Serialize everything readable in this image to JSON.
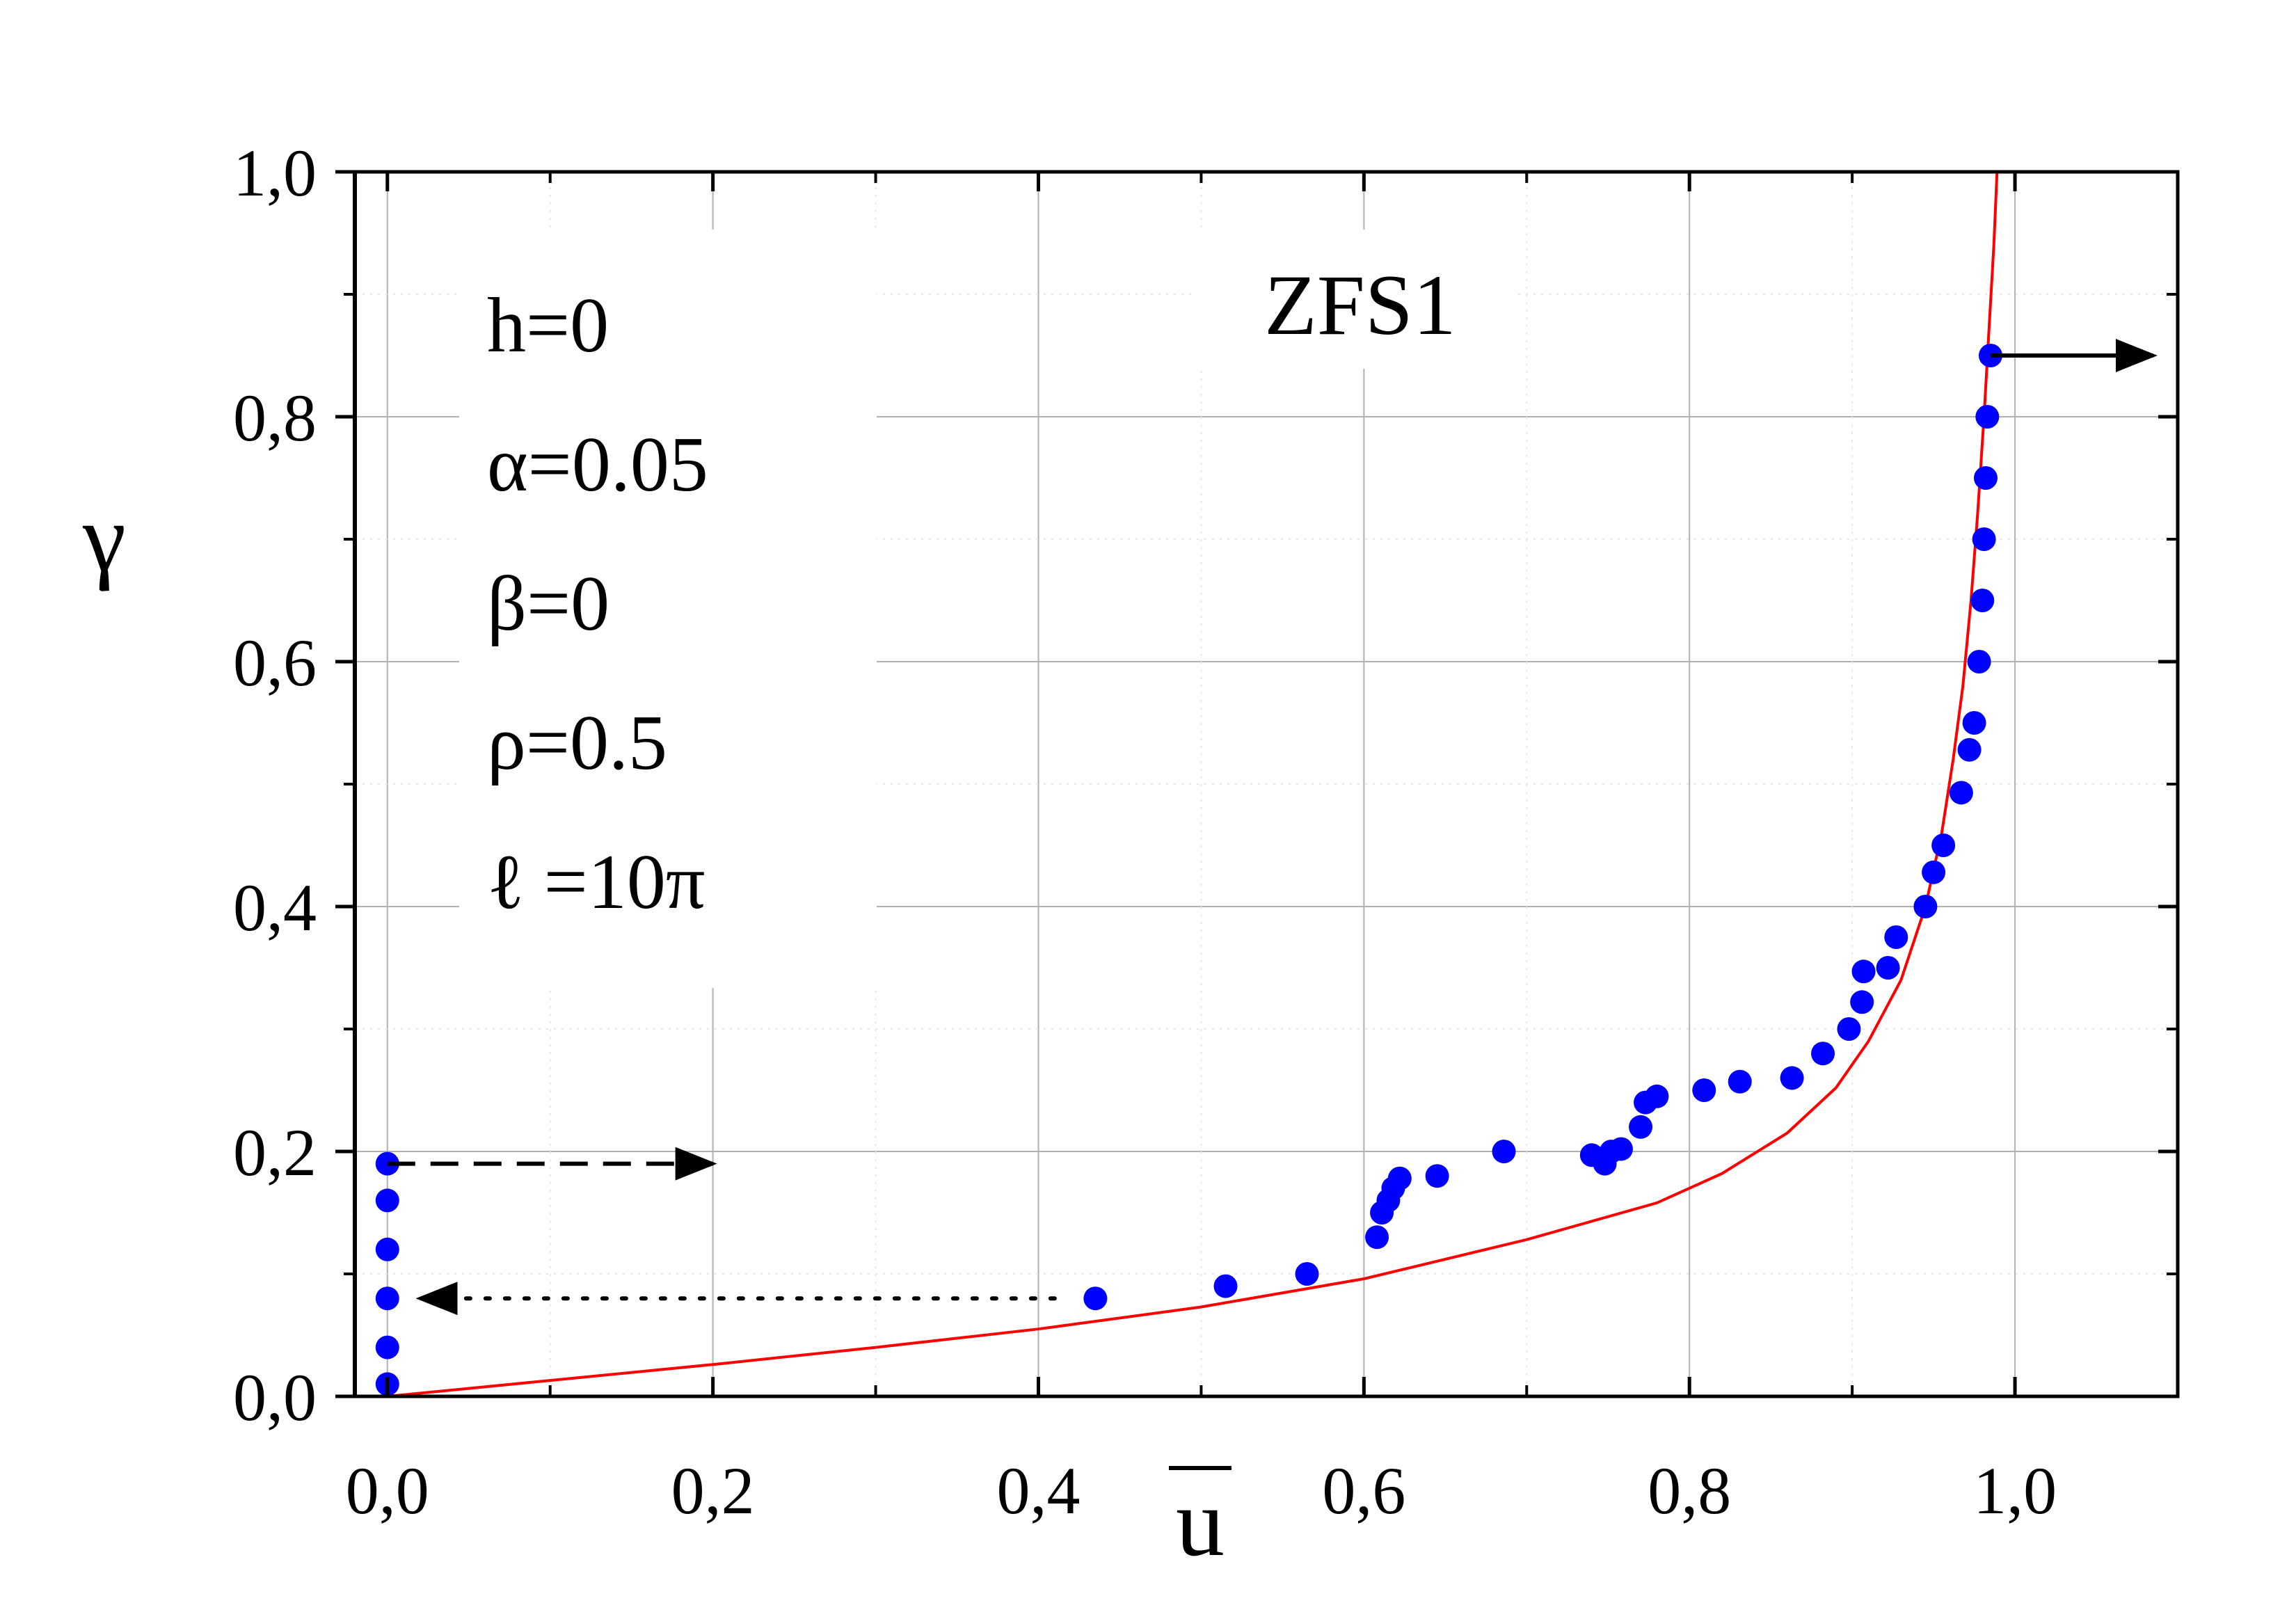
{
  "chart_data": {
    "type": "scatter",
    "title": "ZFS1",
    "xlabel": "u",
    "ylabel": "γ",
    "xlim": [
      -0.02,
      1.1
    ],
    "ylim": [
      0.0,
      1.0
    ],
    "grid": true,
    "x_ticks": [
      "0,0",
      "0,2",
      "0,4",
      "0,6",
      "0,8",
      "1,0"
    ],
    "y_ticks": [
      "0,0",
      "0,2",
      "0,4",
      "0,6",
      "0,8",
      "1,0"
    ],
    "parameters": [
      "h=0",
      "α=0.05",
      "β=0",
      "ρ=0.5",
      "ℓ =10π"
    ],
    "points": [
      {
        "x": 0.0,
        "y": 0.01
      },
      {
        "x": 0.0,
        "y": 0.04
      },
      {
        "x": 0.0,
        "y": 0.08
      },
      {
        "x": 0.0,
        "y": 0.12
      },
      {
        "x": 0.0,
        "y": 0.16
      },
      {
        "x": 0.0,
        "y": 0.19
      },
      {
        "x": 0.435,
        "y": 0.08
      },
      {
        "x": 0.515,
        "y": 0.09
      },
      {
        "x": 0.565,
        "y": 0.1
      },
      {
        "x": 0.608,
        "y": 0.13
      },
      {
        "x": 0.611,
        "y": 0.15
      },
      {
        "x": 0.615,
        "y": 0.16
      },
      {
        "x": 0.618,
        "y": 0.17
      },
      {
        "x": 0.622,
        "y": 0.178
      },
      {
        "x": 0.645,
        "y": 0.18
      },
      {
        "x": 0.686,
        "y": 0.2
      },
      {
        "x": 0.74,
        "y": 0.197
      },
      {
        "x": 0.748,
        "y": 0.19
      },
      {
        "x": 0.752,
        "y": 0.2
      },
      {
        "x": 0.758,
        "y": 0.202
      },
      {
        "x": 0.77,
        "y": 0.22
      },
      {
        "x": 0.773,
        "y": 0.24
      },
      {
        "x": 0.78,
        "y": 0.245
      },
      {
        "x": 0.809,
        "y": 0.25
      },
      {
        "x": 0.831,
        "y": 0.257
      },
      {
        "x": 0.863,
        "y": 0.26
      },
      {
        "x": 0.882,
        "y": 0.28
      },
      {
        "x": 0.898,
        "y": 0.3
      },
      {
        "x": 0.906,
        "y": 0.322
      },
      {
        "x": 0.907,
        "y": 0.347
      },
      {
        "x": 0.922,
        "y": 0.35
      },
      {
        "x": 0.927,
        "y": 0.375
      },
      {
        "x": 0.945,
        "y": 0.4
      },
      {
        "x": 0.95,
        "y": 0.428
      },
      {
        "x": 0.956,
        "y": 0.45
      },
      {
        "x": 0.967,
        "y": 0.493
      },
      {
        "x": 0.972,
        "y": 0.528
      },
      {
        "x": 0.975,
        "y": 0.55
      },
      {
        "x": 0.978,
        "y": 0.6
      },
      {
        "x": 0.98,
        "y": 0.65
      },
      {
        "x": 0.981,
        "y": 0.7
      },
      {
        "x": 0.982,
        "y": 0.75
      },
      {
        "x": 0.983,
        "y": 0.8
      },
      {
        "x": 0.985,
        "y": 0.85
      }
    ],
    "fit_curve": [
      [
        0.0,
        0.0
      ],
      [
        0.1,
        0.013
      ],
      [
        0.2,
        0.026
      ],
      [
        0.3,
        0.04
      ],
      [
        0.4,
        0.055
      ],
      [
        0.5,
        0.073
      ],
      [
        0.6,
        0.096
      ],
      [
        0.7,
        0.128
      ],
      [
        0.78,
        0.158
      ],
      [
        0.82,
        0.182
      ],
      [
        0.86,
        0.215
      ],
      [
        0.89,
        0.252
      ],
      [
        0.91,
        0.29
      ],
      [
        0.93,
        0.34
      ],
      [
        0.945,
        0.4
      ],
      [
        0.955,
        0.46
      ],
      [
        0.962,
        0.52
      ],
      [
        0.968,
        0.58
      ],
      [
        0.973,
        0.65
      ],
      [
        0.977,
        0.72
      ],
      [
        0.981,
        0.8
      ],
      [
        0.984,
        0.87
      ],
      [
        0.987,
        0.94
      ],
      [
        0.989,
        1.0
      ]
    ],
    "arrows": [
      {
        "from": [
          0.985,
          0.85
        ],
        "to": [
          1.085,
          0.85
        ],
        "style": "solid"
      },
      {
        "from": [
          0.0,
          0.19
        ],
        "to": [
          0.2,
          0.19
        ],
        "style": "dashed"
      },
      {
        "from": [
          0.41,
          0.08
        ],
        "to": [
          0.02,
          0.08
        ],
        "style": "dotted"
      }
    ],
    "colors": {
      "points": "#0000ff",
      "curve": "#ff0000",
      "axes": "#000000",
      "grid": "#b0b0b0"
    }
  }
}
